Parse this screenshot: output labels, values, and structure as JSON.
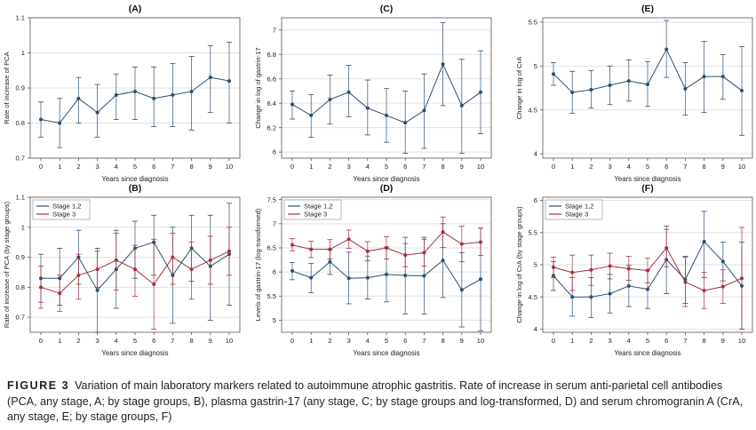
{
  "figure": {
    "caption_label": "FIGURE 3",
    "caption_text": "Variation of main laboratory markers related to autoimmune atrophic gastritis. Rate of increase in serum anti-parietal cell antibodies (PCA, any stage, A; by stage groups, B), plasma gastrin-17 (any stage, C; by stage groups and log-transformed, D) and serum chromogranin A (CrA, any stage, E; by stage groups, F)"
  },
  "colors": {
    "stage12": "#2c4f6e",
    "stage3": "#a3303d",
    "border": "#555555",
    "grid": "#e2e2e2"
  },
  "chart_data": [
    {
      "panel": "(A)",
      "type": "line",
      "xlabel": "Years since diagnosis",
      "ylabel": "Rate of increase of PCA",
      "x": [
        0,
        1,
        2,
        3,
        4,
        5,
        6,
        7,
        8,
        9,
        10
      ],
      "xlim": [
        0,
        10
      ],
      "ylim": [
        0.7,
        1.1
      ],
      "yticks": [
        "0.7",
        "0.8",
        "0.9",
        "1",
        "1.1"
      ],
      "grid": true,
      "legend": null,
      "series": [
        {
          "name": "",
          "color": "#2c4f6e",
          "values": [
            0.81,
            0.8,
            0.87,
            0.83,
            0.88,
            0.89,
            0.87,
            0.88,
            0.89,
            0.93,
            0.92
          ],
          "lower": [
            0.76,
            0.73,
            0.8,
            0.76,
            0.81,
            0.81,
            0.79,
            0.79,
            0.78,
            0.83,
            0.8
          ],
          "upper": [
            0.86,
            0.87,
            0.93,
            0.91,
            0.94,
            0.96,
            0.96,
            0.97,
            0.99,
            1.02,
            1.03
          ]
        }
      ]
    },
    {
      "panel": "(C)",
      "type": "line",
      "xlabel": "Years since diagnosis",
      "ylabel": "Change in log of gastrin-17",
      "x": [
        0,
        1,
        2,
        3,
        4,
        5,
        6,
        7,
        8,
        9,
        10
      ],
      "xlim": [
        0,
        10
      ],
      "ylim": [
        5.95,
        7.1
      ],
      "yticks": [
        "6",
        "6.2",
        "6.4",
        "6.6",
        "6.8",
        "7"
      ],
      "grid": true,
      "legend": null,
      "series": [
        {
          "name": "",
          "color": "#2c4f6e",
          "values": [
            6.39,
            6.3,
            6.43,
            6.49,
            6.36,
            6.3,
            6.24,
            6.34,
            6.72,
            6.38,
            6.49
          ],
          "lower": [
            6.27,
            6.12,
            6.23,
            6.29,
            6.14,
            6.08,
            5.99,
            6.03,
            6.38,
            5.99,
            6.15
          ],
          "upper": [
            6.5,
            6.47,
            6.63,
            6.71,
            6.59,
            6.52,
            6.5,
            6.64,
            7.06,
            6.76,
            6.83
          ]
        }
      ]
    },
    {
      "panel": "(E)",
      "type": "line",
      "xlabel": "Years since diagnosis",
      "ylabel": "Change in log of CrA",
      "x": [
        0,
        1,
        2,
        3,
        4,
        5,
        6,
        7,
        8,
        9,
        10
      ],
      "xlim": [
        0,
        10
      ],
      "ylim": [
        3.95,
        5.55
      ],
      "yticks": [
        "4",
        "4.5",
        "5",
        "5.5"
      ],
      "grid": true,
      "legend": null,
      "series": [
        {
          "name": "",
          "color": "#2c4f6e",
          "values": [
            4.91,
            4.7,
            4.73,
            4.78,
            4.83,
            4.79,
            5.19,
            4.74,
            4.88,
            4.88,
            4.72
          ],
          "lower": [
            4.78,
            4.46,
            4.52,
            4.56,
            4.6,
            4.54,
            4.87,
            4.44,
            4.47,
            4.62,
            4.21
          ],
          "upper": [
            5.04,
            4.94,
            4.95,
            5.0,
            5.07,
            5.05,
            5.52,
            5.04,
            5.28,
            5.13,
            5.22
          ]
        }
      ]
    },
    {
      "panel": "(B)",
      "type": "line",
      "xlabel": "Years since diagnosis",
      "ylabel": "Rate of increase of PCA (by stage groups)",
      "x": [
        0,
        1,
        2,
        3,
        4,
        5,
        6,
        7,
        8,
        9,
        10
      ],
      "xlim": [
        0,
        10
      ],
      "ylim": [
        0.65,
        1.1
      ],
      "yticks": [
        "0.7",
        "0.8",
        "0.9",
        "1",
        "1.1"
      ],
      "grid": true,
      "legend": "top-left",
      "series": [
        {
          "name": "Stage 1,2",
          "color": "#2c4f6e",
          "values": [
            0.83,
            0.83,
            0.9,
            0.79,
            0.86,
            0.93,
            0.95,
            0.84,
            0.93,
            0.87,
            0.91
          ],
          "lower": [
            0.75,
            0.74,
            0.81,
            0.65,
            0.73,
            0.83,
            0.84,
            0.68,
            0.82,
            0.69,
            0.74
          ],
          "upper": [
            0.91,
            0.93,
            0.99,
            0.93,
            0.99,
            1.02,
            1.04,
            1.0,
            1.04,
            1.04,
            1.08
          ]
        },
        {
          "name": "Stage 3",
          "color": "#a3303d",
          "values": [
            0.8,
            0.78,
            0.84,
            0.86,
            0.89,
            0.86,
            0.81,
            0.9,
            0.86,
            0.89,
            0.92
          ],
          "lower": [
            0.73,
            0.72,
            0.76,
            0.8,
            0.79,
            0.77,
            0.66,
            0.81,
            0.76,
            0.81,
            0.84
          ],
          "upper": [
            0.87,
            0.84,
            0.91,
            0.92,
            0.98,
            0.94,
            0.96,
            0.98,
            0.95,
            0.97,
            1.0
          ]
        }
      ]
    },
    {
      "panel": "(D)",
      "type": "line",
      "xlabel": "Years since diagnosis",
      "ylabel": "Levels of gastrin-17 (log-transformed)",
      "x": [
        0,
        1,
        2,
        3,
        4,
        5,
        6,
        7,
        8,
        9,
        10
      ],
      "xlim": [
        0,
        10
      ],
      "ylim": [
        4.75,
        7.55
      ],
      "yticks": [
        "5",
        "5.5",
        "6",
        "6.5",
        "7",
        "7.5"
      ],
      "grid": true,
      "legend": "top-left",
      "series": [
        {
          "name": "Stage 1,2",
          "color": "#2c4f6e",
          "values": [
            6.02,
            5.88,
            6.21,
            5.87,
            5.88,
            5.95,
            5.93,
            5.92,
            6.24,
            5.63,
            5.85
          ],
          "lower": [
            5.84,
            5.57,
            5.95,
            5.34,
            5.44,
            5.38,
            5.13,
            5.13,
            5.47,
            4.86,
            4.78
          ],
          "upper": [
            6.2,
            6.18,
            6.46,
            6.41,
            6.33,
            6.52,
            6.72,
            6.72,
            7.0,
            6.4,
            6.91
          ]
        },
        {
          "name": "Stage 3",
          "color": "#a3303d",
          "values": [
            6.56,
            6.47,
            6.47,
            6.68,
            6.43,
            6.5,
            6.35,
            6.4,
            6.83,
            6.58,
            6.62
          ],
          "lower": [
            6.44,
            6.3,
            6.27,
            6.49,
            6.23,
            6.27,
            6.11,
            6.12,
            6.51,
            6.21,
            6.34
          ],
          "upper": [
            6.69,
            6.64,
            6.67,
            6.87,
            6.63,
            6.73,
            6.59,
            6.68,
            7.14,
            6.95,
            6.91
          ]
        }
      ]
    },
    {
      "panel": "(F)",
      "type": "line",
      "xlabel": "Years since diagnosis",
      "ylabel": "Change in log of CrA (by stage groups)",
      "x": [
        0,
        1,
        2,
        3,
        4,
        5,
        6,
        7,
        8,
        9,
        10
      ],
      "xlim": [
        0,
        10
      ],
      "ylim": [
        3.95,
        6.05
      ],
      "yticks": [
        "4",
        "4.5",
        "5",
        "5.5",
        "6"
      ],
      "grid": true,
      "legend": "top-left",
      "series": [
        {
          "name": "Stage 1,2",
          "color": "#2c4f6e",
          "values": [
            4.83,
            4.5,
            4.5,
            4.55,
            4.67,
            4.62,
            5.08,
            4.77,
            5.36,
            5.05,
            4.67
          ],
          "lower": [
            4.6,
            4.2,
            4.18,
            4.25,
            4.35,
            4.32,
            4.55,
            4.4,
            4.8,
            4.75,
            4.0
          ],
          "upper": [
            5.05,
            4.8,
            4.8,
            4.85,
            4.99,
            4.92,
            5.6,
            5.13,
            5.83,
            5.35,
            5.35
          ]
        },
        {
          "name": "Stage 3",
          "color": "#a3303d",
          "values": [
            4.96,
            4.88,
            4.92,
            4.98,
            4.94,
            4.91,
            5.26,
            4.73,
            4.6,
            4.66,
            4.79
          ],
          "lower": [
            4.8,
            4.6,
            4.68,
            4.78,
            4.76,
            4.72,
            4.97,
            4.35,
            4.32,
            4.4,
            4.0
          ],
          "upper": [
            5.12,
            5.15,
            5.15,
            5.18,
            5.13,
            5.1,
            5.55,
            5.12,
            4.88,
            4.92,
            5.58
          ]
        }
      ]
    }
  ]
}
